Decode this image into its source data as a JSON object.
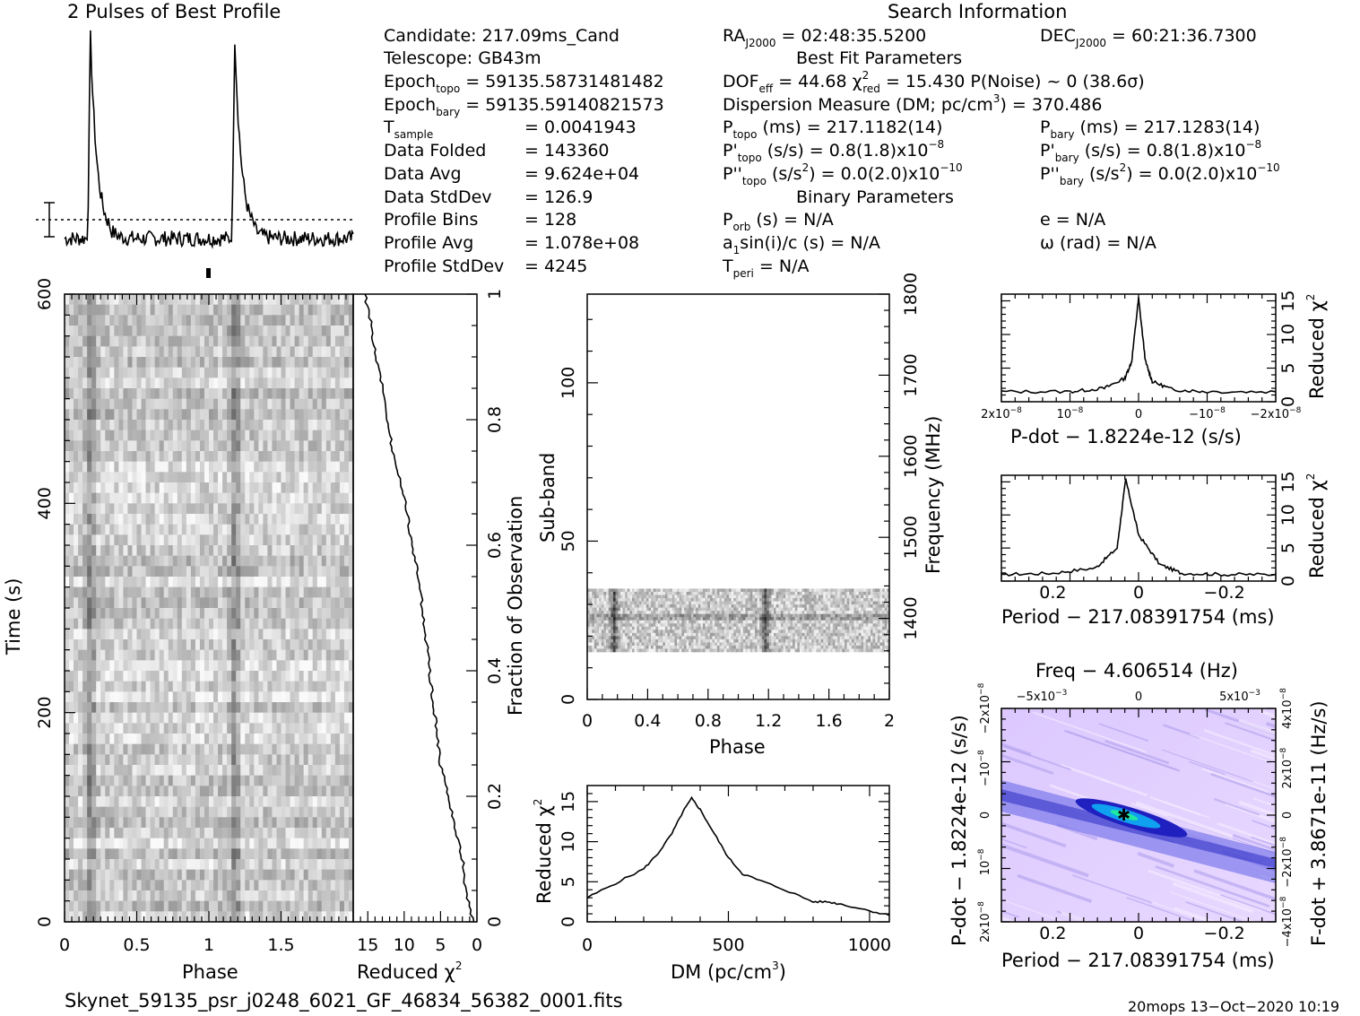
{
  "header": {
    "profile_title": "2 Pulses of Best Profile",
    "search_title": "Search Information",
    "best_fit_title": "Best Fit Parameters",
    "binary_title": "Binary Parameters"
  },
  "info_left": {
    "candidate": "Candidate:  217.09ms_Cand",
    "telescope": "Telescope:  GB43m",
    "epoch_topo": "Epoch",
    "epoch_topo_sub": "topo",
    "epoch_topo_val": " = 59135.58731481482",
    "epoch_bary": "Epoch",
    "epoch_bary_sub": "bary",
    "epoch_bary_val": " = 59135.59140821573",
    "tsample": "T",
    "tsample_sub": "sample",
    "tsample_val": "=   0.0041943",
    "data_folded": "Data Folded",
    "data_folded_val": "=   143360",
    "data_avg": "Data Avg",
    "data_avg_val": "=   9.624e+04",
    "data_stddev": "Data StdDev",
    "data_stddev_val": "=   126.9",
    "profile_bins": "Profile Bins",
    "profile_bins_val": "=   128",
    "profile_avg": "Profile Avg",
    "profile_avg_val": "=   1.078e+08",
    "profile_stddev": "Profile StdDev",
    "profile_stddev_val": "=   4245"
  },
  "info_mid": {
    "ra": "RA",
    "ra_sub": "J2000",
    "ra_val": " = 02:48:35.5200",
    "dof": "DOF",
    "dof_sub": "eff",
    "dof_val": " = 44.68  χ",
    "chi_sup": "2",
    "chi_sub": "red",
    "chi_val": " = 15.430  P(Noise) ~ 0    (38.6σ)",
    "dm": "Dispersion Measure (DM; pc/cm",
    "dm_sup": "3",
    "dm_val": ") = 370.486",
    "ptopo": "P",
    "ptopo_sub": "topo",
    "ptopo_val": " (ms)  =  217.1182(14)",
    "pdtopo": "P'",
    "pdtopo_sub": "topo",
    "pdtopo_val": " (s/s) =  0.8(1.8)x10",
    "pdtopo_exp": "−8",
    "pddtopo": "P''",
    "pddtopo_sub": "topo",
    "pddtopo_val": " (s/s",
    "pddtopo_sup": "2",
    "pddtopo_val2": ") = 0.0(2.0)x10",
    "pddtopo_exp": "−10",
    "porb": "P",
    "porb_sub": "orb",
    "porb_val": " (s) = N/A",
    "a1": "a",
    "a1_sub": "1",
    "a1_val": "sin(i)/c (s) = N/A",
    "tperi": "T",
    "tperi_sub": "peri",
    "tperi_val": " = N/A"
  },
  "info_right": {
    "dec": "DEC",
    "dec_sub": "J2000",
    "dec_val": " = 60:21:36.7300",
    "pbary": "P",
    "pbary_sub": "bary",
    "pbary_val": " (ms)  =  217.1283(14)",
    "pdbary": "P'",
    "pdbary_sub": "bary",
    "pdbary_val": " (s/s) =  0.8(1.8)x10",
    "pdbary_exp": "−8",
    "pddbary": "P''",
    "pddbary_sub": "bary",
    "pddbary_val": " (s/s",
    "pddbary_sup": "2",
    "pddbary_val2": ") = 0.0(2.0)x10",
    "pddbary_exp": "−10",
    "ecc": "e = N/A",
    "omega": "ω (rad) = N/A"
  },
  "labels": {
    "phase": "Phase",
    "time": "Time (s)",
    "reduced_chi": "Reduced χ",
    "chi_sup": "2",
    "fraction": "Fraction of Observation",
    "subband": "Sub-band",
    "frequency": "Frequency (MHz)",
    "dm_axis": "DM (pc/cm",
    "dm_axis_sup": "3",
    "dm_axis_close": ")",
    "pdot_axis": "P-dot − 1.8224e-12 (s/s)",
    "period_axis": "Period − 217.08391754 (ms)",
    "freq_top": "Freq − 4.606514 (Hz)",
    "pdot_left": "P-dot − 1.8224e-12 (s/s)",
    "fdot_right": "F-dot + 3.8671e-11 (Hz/s)",
    "filename": "Skynet_59135_psr_j0248_6021_GF_46834_56382_0001.fits",
    "footer": "20mops 13−Oct−2020 10:19"
  },
  "ticks": {
    "time_y": [
      "0",
      "200",
      "400",
      "600"
    ],
    "phase_x": [
      "0",
      "0.5",
      "1",
      "1.5"
    ],
    "redchi_x": [
      "15",
      "10",
      "5",
      "0"
    ],
    "fraction_y": [
      "0",
      "0.2",
      "0.4",
      "0.6",
      "0.8",
      "1"
    ],
    "subband_y": [
      "0",
      "50",
      "100"
    ],
    "freq_y": [
      "1400",
      "1500",
      "1600",
      "1700",
      "1800"
    ],
    "phase2_x": [
      "0",
      "0.4",
      "0.8",
      "1.2",
      "1.6",
      "2"
    ],
    "dm_x": [
      "0",
      "500",
      "1000"
    ],
    "dm_y": [
      "0",
      "5",
      "10",
      "15"
    ],
    "pdot_x": [
      "2x10",
      "10",
      "0",
      "−10",
      "−2x10"
    ],
    "pdot_x_exp": "−8",
    "pd_y": [
      "0",
      "5",
      "10",
      "15"
    ],
    "period_x": [
      "0.2",
      "0",
      "−0.2"
    ],
    "freq_top_x": [
      "−5x10",
      "0",
      "5x10"
    ],
    "freq_top_exp": "−3",
    "pp_left": [
      "2x10",
      "10",
      "0",
      "−10",
      "−2x10"
    ],
    "pp_left_exp": "−8",
    "pp_right": [
      "−4x10",
      "−2x10",
      "0",
      "2x10",
      "4x10"
    ],
    "pp_right_exp": "−8"
  },
  "chart_data": [
    {
      "type": "line",
      "title": "2 Pulses of Best Profile",
      "x": "phase (0-2)",
      "description": "two pulses at phase 0.18 and 1.18",
      "peak_phase": [
        0.18,
        1.18
      ]
    },
    {
      "type": "heatmap",
      "xlabel": "Phase",
      "ylabel": "Time (s)",
      "xlim": [
        0,
        2
      ],
      "ylim": [
        0,
        600
      ],
      "pulse_phases": [
        0.18,
        1.18
      ]
    },
    {
      "type": "line",
      "xlabel": "Reduced χ2",
      "ylabel": "Fraction of Observation",
      "x_reversed": true,
      "xlim": [
        0,
        17
      ],
      "ylim": [
        0,
        1
      ],
      "y": [
        0,
        0.05,
        0.1,
        0.15,
        0.2,
        0.25,
        0.3,
        0.35,
        0.4,
        0.45,
        0.5,
        0.55,
        0.6,
        0.65,
        0.7,
        0.75,
        0.8,
        0.85,
        0.9,
        0.95,
        1.0
      ],
      "x": [
        0.5,
        1.5,
        2.0,
        3.0,
        4.0,
        5.0,
        5.5,
        6.0,
        6.5,
        7.0,
        7.5,
        8.0,
        9.0,
        9.5,
        10.5,
        11.5,
        12.5,
        13.0,
        14.0,
        14.5,
        15.4
      ]
    },
    {
      "type": "heatmap",
      "xlabel": "Phase",
      "ylabel": "Sub-band",
      "xlim": [
        0,
        2
      ],
      "ylim": [
        0,
        128
      ],
      "freq_range_MHz": [
        1300,
        1800
      ],
      "data_subbands": [
        15,
        35
      ],
      "pulse_phases": [
        0.18,
        1.18
      ]
    },
    {
      "type": "line",
      "xlabel": "DM (pc/cm3)",
      "ylabel": "Reduced χ2",
      "xlim": [
        0,
        1070
      ],
      "ylim": [
        0,
        17
      ],
      "x": [
        0,
        100,
        200,
        250,
        300,
        340,
        370,
        400,
        450,
        500,
        550,
        600,
        700,
        800,
        850,
        900,
        1000,
        1070
      ],
      "y": [
        3,
        4.8,
        6.6,
        8.5,
        11,
        13.8,
        15.4,
        14,
        11,
        8,
        6,
        5.3,
        4,
        2.5,
        2.5,
        2.2,
        1.4,
        0.8
      ]
    },
    {
      "type": "line",
      "xlabel": "P-dot − 1.8224e-12 (s/s)",
      "ylabel": "Reduced χ2",
      "xlim": [
        2e-08,
        -2e-08
      ],
      "ylim": [
        0,
        16
      ],
      "x": [
        2e-08,
        1e-08,
        5e-09,
        2e-09,
        1e-09,
        0,
        -1e-09,
        -2e-09,
        -5e-09,
        -1e-08,
        -2e-08
      ],
      "y": [
        1.5,
        1.5,
        2,
        3.5,
        6,
        15.4,
        6,
        3,
        1.8,
        1.5,
        1.5
      ]
    },
    {
      "type": "line",
      "xlabel": "Period − 217.08391754 (ms)",
      "ylabel": "Reduced χ2",
      "xlim": [
        0.32,
        -0.32
      ],
      "ylim": [
        0,
        16
      ],
      "x": [
        0.32,
        0.2,
        0.1,
        0.05,
        0.03,
        0.0,
        -0.05,
        -0.1,
        -0.2,
        -0.32
      ],
      "y": [
        1,
        1.2,
        2,
        5,
        15.4,
        7,
        2.5,
        1.2,
        1,
        1
      ]
    },
    {
      "type": "heatmap",
      "title": "Freq − 4.606514 (Hz)",
      "xlabel": "Period − 217.08391754 (ms)",
      "ylabel": "P-dot − 1.8224e-12 (s/s)",
      "xlim": [
        0.32,
        -0.32
      ],
      "ylim": [
        -2.5e-08,
        2.5e-08
      ],
      "peak": [
        0.03,
        0
      ]
    }
  ]
}
